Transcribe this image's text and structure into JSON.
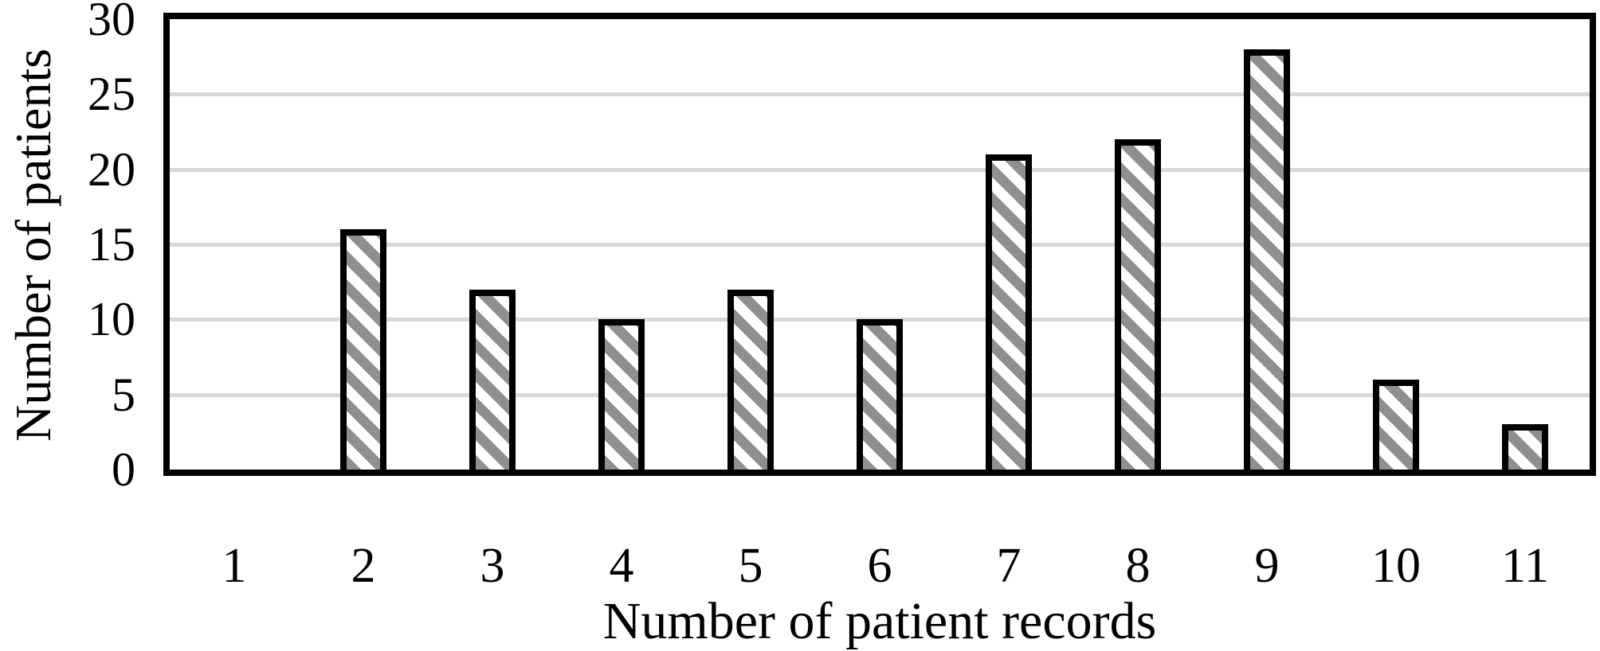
{
  "chart_data": {
    "type": "bar",
    "title": "",
    "xlabel": "Number of patient records",
    "ylabel": "Number of patients",
    "categories": [
      "1",
      "2",
      "3",
      "4",
      "5",
      "6",
      "7",
      "8",
      "9",
      "10",
      "11"
    ],
    "values": [
      0,
      16,
      12,
      10,
      12,
      10,
      21,
      22,
      28,
      6,
      3
    ],
    "ylim": [
      0,
      30
    ],
    "yticks": [
      0,
      5,
      10,
      15,
      20,
      25,
      30
    ],
    "grid": true,
    "legend": "none",
    "style": {
      "bar_fill": "diagonal-hatch",
      "hatch_color": "#8f8f8f",
      "hatch_background": "#ffffff",
      "bar_border_color": "#000000",
      "gridline_color": "#d9d9d9",
      "axis_color": "#000000",
      "text_color": "#000000"
    }
  }
}
